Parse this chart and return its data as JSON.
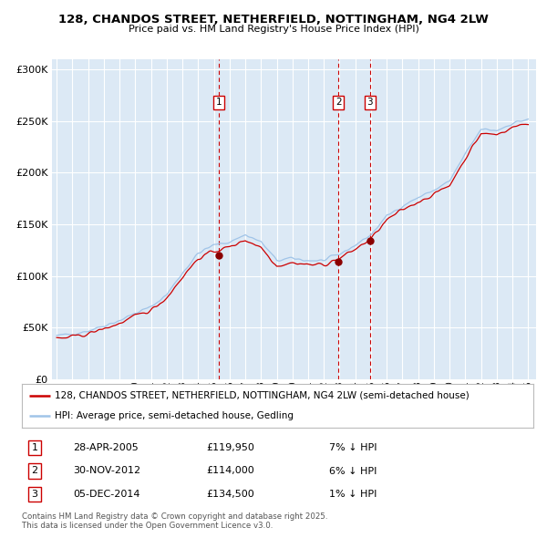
{
  "title1": "128, CHANDOS STREET, NETHERFIELD, NOTTINGHAM, NG4 2LW",
  "title2": "Price paid vs. HM Land Registry's House Price Index (HPI)",
  "ylabel_ticks": [
    "£0",
    "£50K",
    "£100K",
    "£150K",
    "£200K",
    "£250K",
    "£300K"
  ],
  "ytick_vals": [
    0,
    50000,
    100000,
    150000,
    200000,
    250000,
    300000
  ],
  "ylim": [
    0,
    310000
  ],
  "xlim_start": 1994.7,
  "xlim_end": 2025.5,
  "background_color": "#dce9f5",
  "plot_bg": "#dce9f5",
  "grid_color": "#ffffff",
  "hpi_color": "#a0c4e8",
  "price_color": "#cc0000",
  "sale_marker_color": "#8b0000",
  "vline_color": "#cc0000",
  "legend_items": [
    "128, CHANDOS STREET, NETHERFIELD, NOTTINGHAM, NG4 2LW (semi-detached house)",
    "HPI: Average price, semi-detached house, Gedling"
  ],
  "transactions": [
    {
      "num": 1,
      "date": "28-APR-2005",
      "price": "£119,950",
      "vs_hpi": "7% ↓ HPI",
      "x_year": 2005.33,
      "sale_price": 119950
    },
    {
      "num": 2,
      "date": "30-NOV-2012",
      "price": "£114,000",
      "vs_hpi": "6% ↓ HPI",
      "x_year": 2012.92,
      "sale_price": 114000
    },
    {
      "num": 3,
      "date": "05-DEC-2014",
      "price": "£134,500",
      "vs_hpi": "1% ↓ HPI",
      "x_year": 2014.92,
      "sale_price": 134500
    }
  ],
  "footer": "Contains HM Land Registry data © Crown copyright and database right 2025.\nThis data is licensed under the Open Government Licence v3.0."
}
